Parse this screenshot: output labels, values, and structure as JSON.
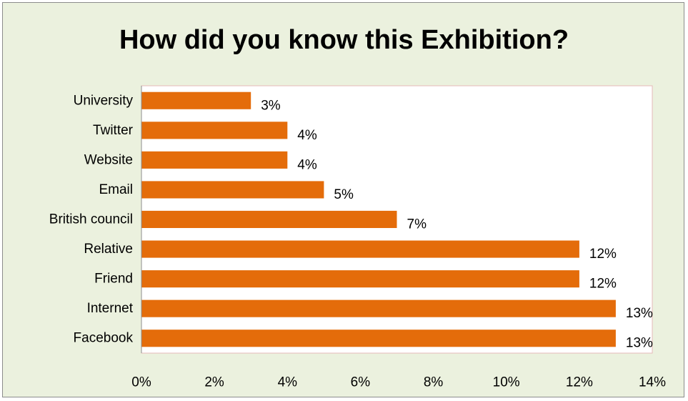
{
  "chart_data": {
    "type": "bar",
    "orientation": "horizontal",
    "title": "How did you know this Exhibition?",
    "xlabel": "",
    "ylabel": "",
    "categories": [
      "University",
      "Twitter",
      "Website",
      "Email",
      "British council",
      "Relative",
      "Friend",
      "Internet",
      "Facebook"
    ],
    "values": [
      3,
      4,
      4,
      5,
      7,
      12,
      12,
      13,
      13
    ],
    "value_labels": [
      "3%",
      "4%",
      "4%",
      "5%",
      "7%",
      "12%",
      "12%",
      "13%",
      "13%"
    ],
    "xlim": [
      0,
      14
    ],
    "x_ticks": [
      "0%",
      "2%",
      "4%",
      "6%",
      "8%",
      "10%",
      "12%",
      "14%"
    ],
    "x_tick_values": [
      0,
      2,
      4,
      6,
      8,
      10,
      12,
      14
    ],
    "grid": false,
    "legend": "none",
    "colors": {
      "bar": "#e46c0a",
      "plot_background": "#ffffff",
      "chart_background": "#ebf1de",
      "plot_border": "#e6b9b8"
    }
  }
}
